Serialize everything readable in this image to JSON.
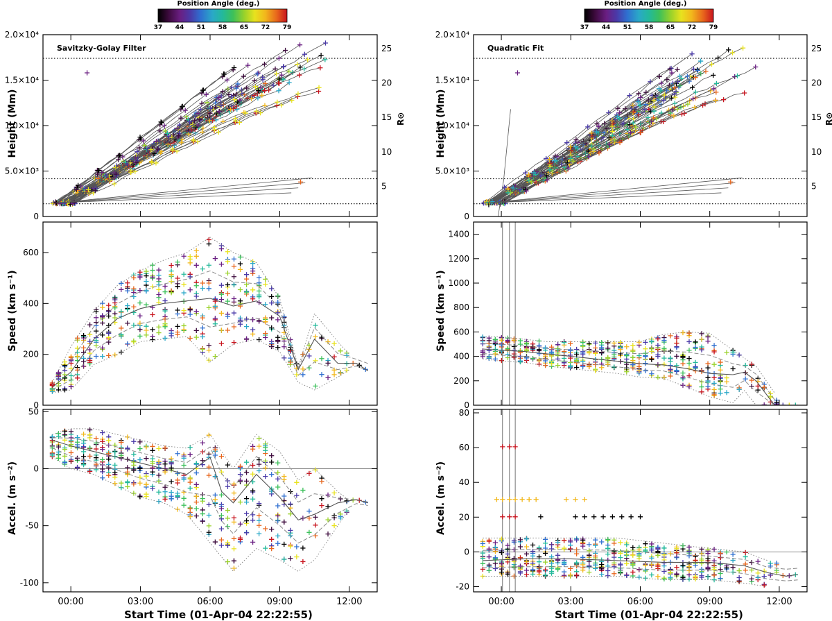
{
  "colorbar": {
    "title": "Position Angle (deg.)",
    "ticks": [
      "37",
      "44",
      "51",
      "58",
      "65",
      "72",
      "79"
    ],
    "colors": [
      "#000000",
      "#3c0a3c",
      "#6a1e82",
      "#4a3aa8",
      "#2f6fd0",
      "#2aa8c8",
      "#23b99b",
      "#3cc05a",
      "#9ad22a",
      "#e8e21e",
      "#f2b81c",
      "#e8661c",
      "#c8141e"
    ]
  },
  "shared": {
    "xlabel": "Start Time (01-Apr-04 22:22:55)",
    "xticks": [
      "00:00",
      "03:00",
      "06:00",
      "09:00",
      "12:00"
    ],
    "xtick_hours": [
      0,
      3,
      6,
      9,
      12
    ],
    "xlim_hours": [
      -1.2,
      13.2
    ]
  },
  "chart_data": [
    {
      "id": "left-height",
      "type": "scatter",
      "title": "Savitzky-Golay Filter",
      "ylabel": "Height (Mm)",
      "yticks": [
        "0",
        "5.0×10³",
        "1.0×10⁴",
        "1.5×10⁴",
        "2.0×10⁴"
      ],
      "ytick_values": [
        0,
        5000,
        10000,
        15000,
        20000
      ],
      "ylim": [
        0,
        20000
      ],
      "y2label": "R⊙",
      "y2ticks": [
        "5",
        "10",
        "15",
        "20",
        "25"
      ],
      "y2tick_values": [
        5,
        10,
        15,
        20,
        25
      ],
      "reference_lines": [
        1400,
        4150,
        17400
      ],
      "outlier_points": [
        {
          "x": 0.7,
          "y": 15800,
          "c": 0.2
        },
        {
          "x": 9.9,
          "y": 3800,
          "c": 0.88
        }
      ],
      "series_summary": {
        "start": [
          -0.8,
          1500
        ],
        "mid_slope_Mm_per_hr": 1700,
        "end_range": [
          9500,
          17000
        ]
      }
    },
    {
      "id": "left-speed",
      "type": "scatter",
      "ylabel": "Speed (km s⁻¹)",
      "yticks": [
        "0",
        "200",
        "400",
        "600"
      ],
      "ytick_values": [
        0,
        200,
        400,
        600
      ],
      "ylim": [
        0,
        720
      ],
      "median": [
        [
          -0.8,
          70
        ],
        [
          0,
          130
        ],
        [
          1,
          260
        ],
        [
          2,
          340
        ],
        [
          3,
          380
        ],
        [
          4,
          400
        ],
        [
          5,
          410
        ],
        [
          6,
          420
        ],
        [
          7,
          390
        ],
        [
          8,
          410
        ],
        [
          9,
          350
        ],
        [
          9.8,
          140
        ],
        [
          10.5,
          260
        ],
        [
          11.5,
          165
        ],
        [
          12.3,
          165
        ],
        [
          12.8,
          135
        ]
      ],
      "upper": [
        [
          -0.8,
          90
        ],
        [
          0,
          230
        ],
        [
          1,
          370
        ],
        [
          2,
          470
        ],
        [
          3,
          530
        ],
        [
          4,
          570
        ],
        [
          5,
          600
        ],
        [
          6,
          660
        ],
        [
          7,
          600
        ],
        [
          8,
          560
        ],
        [
          9,
          420
        ],
        [
          9.8,
          150
        ],
        [
          10.5,
          360
        ],
        [
          11.5,
          250
        ],
        [
          12,
          200
        ]
      ],
      "lower": [
        [
          -0.8,
          50
        ],
        [
          0,
          60
        ],
        [
          1,
          160
        ],
        [
          2,
          200
        ],
        [
          3,
          250
        ],
        [
          4,
          260
        ],
        [
          5,
          270
        ],
        [
          6,
          170
        ],
        [
          7,
          240
        ],
        [
          8,
          260
        ],
        [
          9,
          210
        ],
        [
          9.8,
          90
        ],
        [
          10.5,
          60
        ],
        [
          11.5,
          110
        ],
        [
          12,
          140
        ]
      ]
    },
    {
      "id": "left-accel",
      "type": "scatter",
      "ylabel": "Accel. (m s⁻²)",
      "yticks": [
        "-100",
        "-50",
        "0",
        "50"
      ],
      "ytick_values": [
        -100,
        -50,
        0,
        50
      ],
      "ylim": [
        -108,
        52
      ],
      "zero_line": true,
      "median": [
        [
          -0.8,
          25
        ],
        [
          0,
          20
        ],
        [
          1,
          15
        ],
        [
          2,
          10
        ],
        [
          3,
          5
        ],
        [
          4,
          0
        ],
        [
          5,
          -5
        ],
        [
          6,
          10
        ],
        [
          6.5,
          -20
        ],
        [
          7,
          -30
        ],
        [
          8,
          -5
        ],
        [
          9,
          -25
        ],
        [
          9.8,
          -45
        ],
        [
          10.5,
          -40
        ],
        [
          11.5,
          -30
        ],
        [
          12.3,
          -27
        ],
        [
          12.8,
          -30
        ]
      ],
      "upper": [
        [
          -0.8,
          30
        ],
        [
          0,
          35
        ],
        [
          1,
          35
        ],
        [
          2,
          30
        ],
        [
          3,
          25
        ],
        [
          4,
          20
        ],
        [
          5,
          18
        ],
        [
          6,
          30
        ],
        [
          7,
          0
        ],
        [
          8,
          30
        ],
        [
          9,
          15
        ],
        [
          9.8,
          -10
        ],
        [
          10.5,
          0
        ],
        [
          11.5,
          -20
        ],
        [
          12,
          -28
        ]
      ],
      "lower": [
        [
          -0.8,
          10
        ],
        [
          0,
          0
        ],
        [
          1,
          -5
        ],
        [
          2,
          -15
        ],
        [
          3,
          -25
        ],
        [
          4,
          -30
        ],
        [
          5,
          -40
        ],
        [
          6,
          -65
        ],
        [
          7,
          -90
        ],
        [
          8,
          -70
        ],
        [
          9,
          -80
        ],
        [
          9.8,
          -90
        ],
        [
          10.5,
          -80
        ],
        [
          11.5,
          -50
        ],
        [
          12,
          -35
        ]
      ]
    },
    {
      "id": "right-height",
      "type": "scatter",
      "title": "Quadratic Fit",
      "ylabel": "Height (Mm)",
      "yticks": [
        "0",
        "5.0×10³",
        "1.0×10⁴",
        "1.5×10⁴",
        "2.0×10⁴"
      ],
      "ytick_values": [
        0,
        5000,
        10000,
        15000,
        20000
      ],
      "ylim": [
        0,
        20000
      ],
      "y2label": "R⊙",
      "y2ticks": [
        "5",
        "10",
        "15",
        "20",
        "25"
      ],
      "y2tick_values": [
        5,
        10,
        15,
        20,
        25
      ],
      "reference_lines": [
        1400,
        4150,
        17400
      ],
      "outlier_points": [
        {
          "x": 0.7,
          "y": 15800,
          "c": 0.2
        },
        {
          "x": 9.9,
          "y": 3800,
          "c": 0.88
        }
      ],
      "series_summary": {
        "start": [
          -0.8,
          1500
        ],
        "mid_slope_Mm_per_hr": 1700,
        "end_range": [
          9500,
          17000
        ]
      }
    },
    {
      "id": "right-speed",
      "type": "scatter",
      "ylabel": "Speed (km s⁻¹)",
      "yticks": [
        "0",
        "200",
        "400",
        "600",
        "800",
        "1000",
        "1200",
        "1400"
      ],
      "ytick_values": [
        0,
        200,
        400,
        600,
        800,
        1000,
        1200,
        1400
      ],
      "ylim": [
        0,
        1500
      ],
      "median": [
        [
          -0.8,
          460
        ],
        [
          0,
          450
        ],
        [
          1,
          440
        ],
        [
          2,
          420
        ],
        [
          3,
          400
        ],
        [
          4,
          380
        ],
        [
          5,
          360
        ],
        [
          6,
          340
        ],
        [
          7,
          330
        ],
        [
          8,
          300
        ],
        [
          9,
          260
        ],
        [
          10,
          250
        ],
        [
          10.5,
          270
        ],
        [
          11,
          200
        ],
        [
          11.8,
          0
        ]
      ],
      "upper": [
        [
          -0.8,
          560
        ],
        [
          0,
          560
        ],
        [
          1,
          540
        ],
        [
          2,
          520
        ],
        [
          3,
          520
        ],
        [
          4,
          520
        ],
        [
          5,
          520
        ],
        [
          6,
          520
        ],
        [
          7,
          580
        ],
        [
          8,
          600
        ],
        [
          9,
          590
        ],
        [
          10,
          450
        ],
        [
          11,
          320
        ],
        [
          11.8,
          100
        ]
      ],
      "lower": [
        [
          -0.8,
          380
        ],
        [
          0,
          360
        ],
        [
          1,
          350
        ],
        [
          2,
          320
        ],
        [
          3,
          300
        ],
        [
          4,
          280
        ],
        [
          5,
          260
        ],
        [
          6,
          230
        ],
        [
          7,
          220
        ],
        [
          8,
          150
        ],
        [
          9,
          70
        ],
        [
          10,
          20
        ],
        [
          10.5,
          120
        ],
        [
          11,
          0
        ]
      ]
    },
    {
      "id": "right-accel",
      "type": "scatter",
      "ylabel": "Accel. (m s⁻²)",
      "yticks": [
        "-20",
        "0",
        "20",
        "40",
        "60",
        "80"
      ],
      "ytick_values": [
        -20,
        0,
        20,
        40,
        60,
        80
      ],
      "ylim": [
        -23,
        82
      ],
      "zero_line": true,
      "annotated_rows": [
        {
          "y": 60.5,
          "x": [
            0.05,
            0.35,
            0.6
          ],
          "c": 0.93
        },
        {
          "y": 30.2,
          "x": [
            -0.2,
            0.05,
            0.35,
            0.6,
            0.9,
            1.2,
            1.5,
            2.8,
            3.2,
            3.6
          ],
          "c": 0.8
        },
        {
          "y": 20.2,
          "x": [
            0.05,
            0.35,
            0.6
          ],
          "c": 0.93
        },
        {
          "y": 20.2,
          "x": [
            1.7,
            3.2,
            3.6,
            4.0,
            4.4,
            4.8,
            5.2,
            5.6,
            6.0
          ],
          "c": 0.0
        }
      ],
      "median": [
        [
          -0.8,
          -5
        ],
        [
          1,
          -4
        ],
        [
          3,
          -4
        ],
        [
          5,
          -5
        ],
        [
          7,
          -6
        ],
        [
          9,
          -6
        ],
        [
          10.5,
          -8
        ],
        [
          11.5,
          -12
        ],
        [
          12.3,
          -14
        ],
        [
          12.8,
          -13
        ]
      ],
      "upper": [
        [
          -0.8,
          8
        ],
        [
          1,
          8
        ],
        [
          3,
          8
        ],
        [
          5,
          8
        ],
        [
          7,
          5
        ],
        [
          9,
          2
        ],
        [
          10.5,
          0
        ],
        [
          11.5,
          -5
        ]
      ],
      "lower": [
        [
          -0.8,
          -14
        ],
        [
          1,
          -14
        ],
        [
          3,
          -14
        ],
        [
          5,
          -14
        ],
        [
          7,
          -16
        ],
        [
          9,
          -16
        ],
        [
          10.5,
          -18
        ],
        [
          11.5,
          -20
        ]
      ]
    }
  ]
}
